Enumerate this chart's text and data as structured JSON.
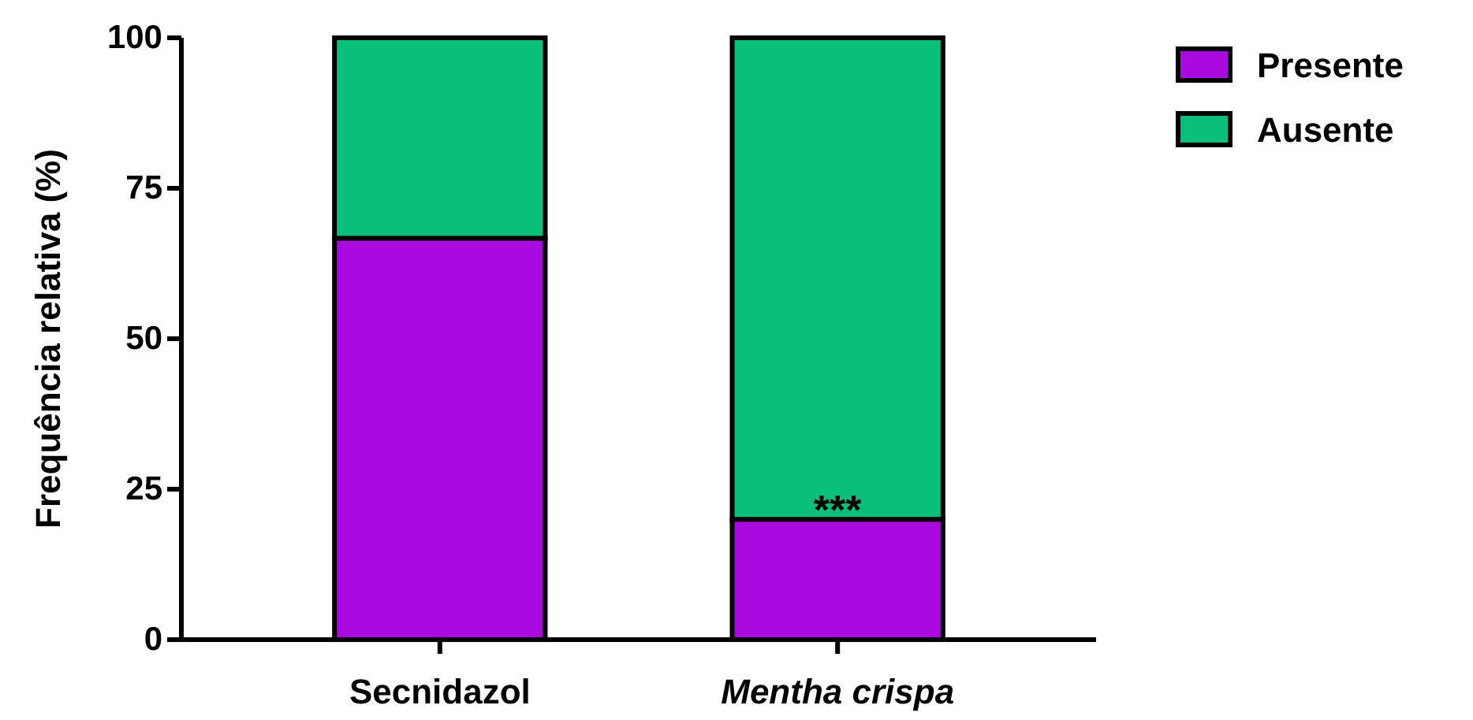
{
  "chart_data": {
    "type": "bar",
    "ylabel": "Frequência relativa (%)",
    "categories": [
      "Secnidazol",
      "Mentha crispa"
    ],
    "series": [
      {
        "name": "Presente",
        "color": "#aa0ae0",
        "values": [
          66.7,
          20
        ]
      },
      {
        "name": "Ausente",
        "color": "#0abf7a",
        "values": [
          33.3,
          80
        ]
      }
    ],
    "stacked": true,
    "ylim": [
      0,
      100
    ],
    "yticks": [
      0,
      25,
      50,
      75,
      100
    ],
    "legend": "right",
    "annotations": [
      {
        "text": "***",
        "x": "Mentha crispa",
        "y": 20
      }
    ]
  }
}
